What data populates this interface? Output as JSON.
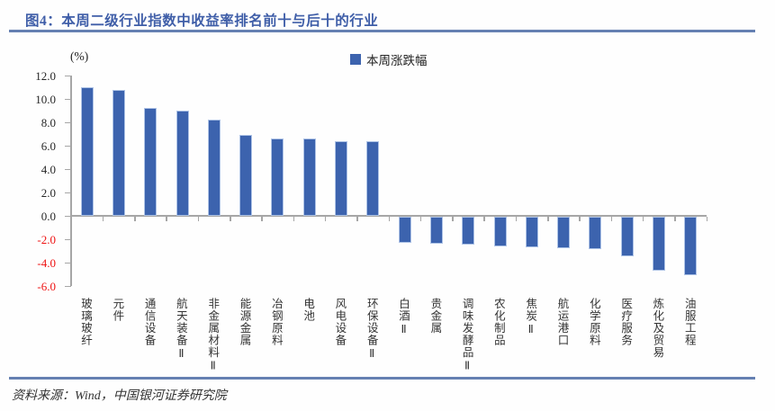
{
  "header": {
    "title": "图4：本周二级行业指数中收益率排名前十与后十的行业"
  },
  "colors": {
    "title_blue": "#3f5ea8",
    "rule_blue": "#6580b2",
    "bar_fill": "#3c63ae",
    "bar_border": "#aec3e6",
    "axis_gray": "#a6a6a6",
    "negative_tick_red": "#ee1111"
  },
  "chart_data": {
    "type": "bar",
    "title": "图4：本周二级行业指数中收益率排名前十与后十的行业",
    "unit_label": "(%)",
    "legend": [
      "本周涨跌幅"
    ],
    "legend_position": "top-center",
    "grid": false,
    "categories": [
      "玻璃玻纤",
      "元件",
      "通信设备",
      "航天装备Ⅱ",
      "非金属材料Ⅱ",
      "能源金属",
      "冶钢原料",
      "电池",
      "风电设备",
      "环保设备Ⅱ",
      "白酒Ⅱ",
      "贵金属",
      "调味发酵品Ⅱ",
      "农化制品",
      "焦炭Ⅱ",
      "航运港口",
      "化学原料",
      "医疗服务",
      "炼化及贸易",
      "油服工程"
    ],
    "values": [
      11.0,
      10.8,
      9.2,
      9.0,
      8.2,
      6.9,
      6.6,
      6.6,
      6.4,
      6.4,
      -2.2,
      -2.3,
      -2.4,
      -2.5,
      -2.6,
      -2.7,
      -2.8,
      -3.4,
      -4.6,
      -5.0
    ],
    "ylim": [
      -6.0,
      12.0
    ],
    "yticks": [
      12.0,
      10.0,
      8.0,
      6.0,
      4.0,
      2.0,
      0.0,
      -2.0,
      -4.0,
      -6.0
    ],
    "xlabel": "",
    "ylabel": "(%)"
  },
  "footer": {
    "source": "资料来源：Wind，中国银河证券研究院"
  }
}
